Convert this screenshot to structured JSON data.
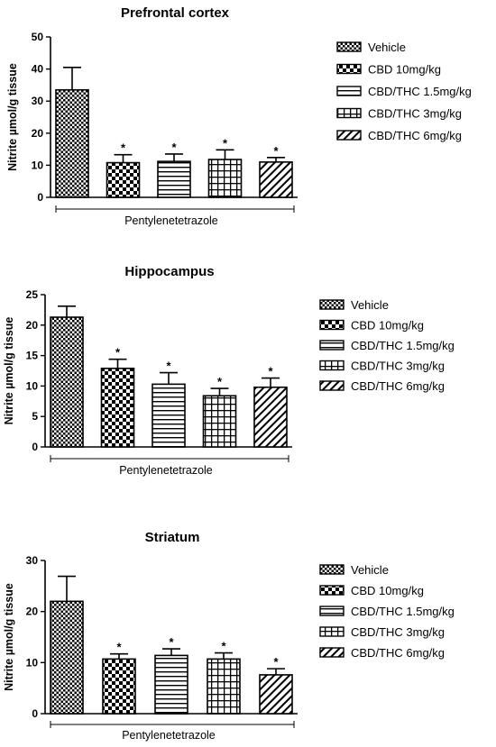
{
  "chart_data": [
    {
      "type": "bar",
      "title": "Prefrontal cortex",
      "ylabel": "Nitrite µmol/g tissue",
      "group_label": "Pentylenetetrazole",
      "ylim": [
        0,
        50
      ],
      "yticks": [
        "0",
        "10",
        "20",
        "30",
        "40",
        "50"
      ],
      "categories": [
        "Vehicle",
        "CBD 10mg/kg",
        "CBD/THC 1.5mg/kg",
        "CBD/THC 3mg/kg",
        "CBD/THC 6mg/kg"
      ],
      "values": [
        33.5,
        10.8,
        11.2,
        11.8,
        11.0
      ],
      "errors": [
        7.0,
        2.5,
        2.3,
        3.0,
        1.4
      ],
      "significance": [
        "",
        "*",
        "*",
        "*",
        "*"
      ],
      "legend_position": "right"
    },
    {
      "type": "bar",
      "title": "Hippocampus",
      "ylabel": "Nitrite µmol/g tissue",
      "group_label": "Pentylenetetrazole",
      "ylim": [
        0,
        25
      ],
      "yticks": [
        "0",
        "5",
        "10",
        "15",
        "20",
        "25"
      ],
      "categories": [
        "Vehicle",
        "CBD 10mg/kg",
        "CBD/THC 1.5mg/kg",
        "CBD/THC 3mg/kg",
        "CBD/THC 6mg/kg"
      ],
      "values": [
        21.3,
        12.9,
        10.3,
        8.4,
        9.8
      ],
      "errors": [
        1.8,
        1.5,
        1.9,
        1.2,
        1.5
      ],
      "significance": [
        "",
        "*",
        "*",
        "*",
        "*"
      ],
      "legend_position": "right"
    },
    {
      "type": "bar",
      "title": "Striatum",
      "ylabel": "Nitrite µmol/g tissue",
      "group_label": "Pentylenetetrazole",
      "ylim": [
        0,
        30
      ],
      "yticks": [
        "0",
        "10",
        "20",
        "30"
      ],
      "categories": [
        "Vehicle",
        "CBD 10mg/kg",
        "CBD/THC 1.5mg/kg",
        "CBD/THC 3mg/kg",
        "CBD/THC 6mg/kg"
      ],
      "values": [
        22.0,
        10.7,
        11.4,
        10.7,
        7.6
      ],
      "errors": [
        4.9,
        1.0,
        1.3,
        1.2,
        1.2
      ],
      "significance": [
        "",
        "*",
        "*",
        "*",
        "*"
      ],
      "legend_position": "right"
    }
  ]
}
